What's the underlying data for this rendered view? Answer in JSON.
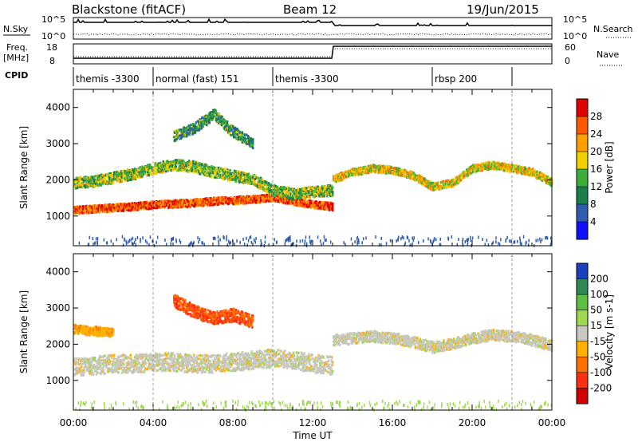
{
  "header": {
    "station": "Blackstone (fitACF)",
    "beam": "Beam 12",
    "date": "19/Jun/2015"
  },
  "top_panels": {
    "nsky": {
      "label": "N.Sky",
      "ticks": [
        "10^5",
        "10^0"
      ]
    },
    "nsearch": {
      "label": "N.Search",
      "ticks": [
        "10^5",
        "10^0"
      ]
    },
    "freq": {
      "label_line1": "Freq.",
      "label_line2": "[MHz]",
      "ticks": [
        "18",
        "8"
      ]
    },
    "nave": {
      "label": "Nave",
      "ticks": [
        "60",
        "0"
      ]
    },
    "cpid": {
      "label": "CPID",
      "segments": [
        {
          "name": "themis -3300",
          "start_h": 0.0,
          "end_h": 4.0
        },
        {
          "name": "normal (fast) 151",
          "start_h": 4.0,
          "end_h": 10.0
        },
        {
          "name": "themis -3300",
          "start_h": 10.0,
          "end_h": 18.0
        },
        {
          "name": "rbsp 200",
          "start_h": 18.0,
          "end_h": 22.0
        }
      ]
    }
  },
  "chart_data": [
    {
      "type": "heatmap",
      "name": "power",
      "xlabel": "Time UT",
      "ylabel": "Slant Range [km]",
      "xlim": [
        0,
        24
      ],
      "ylim": [
        180,
        4500
      ],
      "xticks": [
        "00:00",
        "04:00",
        "08:00",
        "12:00",
        "16:00",
        "20:00",
        "00:00"
      ],
      "yticks": [
        1000,
        2000,
        3000,
        4000
      ],
      "colorbar": {
        "label": "Power [dB]",
        "ticks": [
          "28",
          "24",
          "20",
          "16",
          "12",
          "8",
          "4"
        ],
        "colors": [
          "#e00000",
          "#ff5a00",
          "#ff9e00",
          "#f0d000",
          "#3cae3c",
          "#1a7f4a",
          "#2f5bb0",
          "#1010ff"
        ]
      },
      "bands": [
        {
          "x": [
            0,
            1,
            2,
            3,
            4,
            5,
            6,
            7,
            8,
            9,
            10,
            11,
            12,
            13
          ],
          "y": [
            1150,
            1180,
            1220,
            1250,
            1300,
            1320,
            1350,
            1400,
            1420,
            1450,
            1500,
            1400,
            1300,
            1250
          ],
          "width": 200,
          "level": 26
        },
        {
          "x": [
            0,
            1,
            2,
            3,
            4,
            5,
            6,
            7,
            8,
            9,
            10,
            11,
            12,
            13
          ],
          "y": [
            1900,
            1950,
            2050,
            2150,
            2300,
            2400,
            2350,
            2200,
            2100,
            2000,
            1700,
            1600,
            1650,
            1700
          ],
          "width": 300,
          "level": 14
        },
        {
          "x": [
            13,
            14,
            15,
            16,
            17,
            18,
            19,
            20,
            21,
            22,
            23,
            24
          ],
          "y": [
            2000,
            2200,
            2300,
            2250,
            2100,
            1800,
            1900,
            2300,
            2400,
            2300,
            2200,
            1900
          ],
          "width": 200,
          "level": 18
        },
        {
          "x": [
            5,
            6,
            7,
            8,
            9
          ],
          "y": [
            3200,
            3400,
            3800,
            3300,
            3000
          ],
          "width": 300,
          "level": 10
        }
      ]
    },
    {
      "type": "heatmap",
      "name": "velocity",
      "xlabel": "Time UT",
      "ylabel": "Slant Range [km]",
      "xlim": [
        0,
        24
      ],
      "ylim": [
        180,
        4500
      ],
      "xticks": [
        "00:00",
        "04:00",
        "08:00",
        "12:00",
        "16:00",
        "20:00",
        "00:00"
      ],
      "yticks": [
        1000,
        2000,
        3000,
        4000
      ],
      "colorbar": {
        "label": "Velocity [m s-1]",
        "ticks": [
          "200",
          "100",
          "50",
          "15",
          "-15",
          "-50",
          "-100",
          "-200"
        ],
        "colors": [
          "#1a3fbf",
          "#2e8b57",
          "#5cbf3f",
          "#9ed84f",
          "#c8c8c0",
          "#ffb000",
          "#ff7000",
          "#ff3010",
          "#d00000"
        ]
      },
      "bands": [
        {
          "x": [
            0,
            1,
            2,
            3,
            4,
            5,
            6,
            7,
            8,
            9,
            10,
            11,
            12,
            13
          ],
          "y": [
            1350,
            1400,
            1450,
            1450,
            1500,
            1500,
            1450,
            1450,
            1500,
            1550,
            1600,
            1550,
            1450,
            1400
          ],
          "width": 500,
          "level": 0
        },
        {
          "x": [
            13,
            14,
            15,
            16,
            17,
            18,
            19,
            20,
            21,
            22,
            23,
            24
          ],
          "y": [
            2100,
            2150,
            2200,
            2150,
            2050,
            1900,
            2000,
            2150,
            2250,
            2200,
            2100,
            1950
          ],
          "width": 300,
          "level": 0
        },
        {
          "x": [
            0,
            1,
            2
          ],
          "y": [
            2400,
            2350,
            2300
          ],
          "width": 250,
          "level": -40
        },
        {
          "x": [
            5,
            6,
            7,
            8,
            9
          ],
          "y": [
            3200,
            2900,
            2700,
            2800,
            2600
          ],
          "width": 350,
          "level": -100
        }
      ]
    }
  ]
}
